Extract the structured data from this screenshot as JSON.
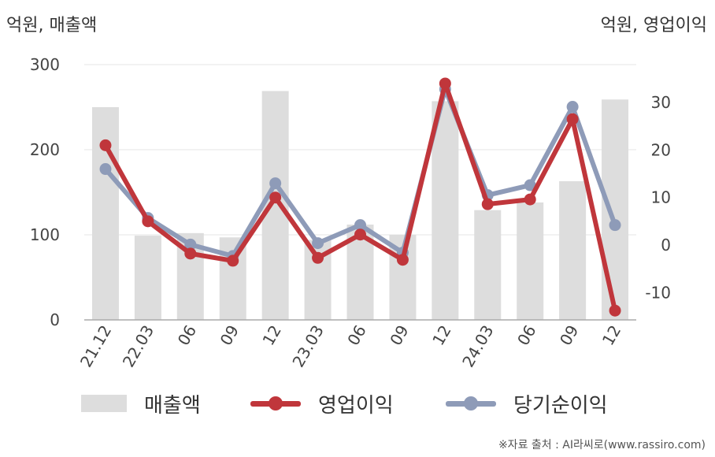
{
  "unit_left": "억원, 매출액",
  "unit_right": "억원, 영업이익",
  "source": "※자료 출처 : AI라씨로(www.rassiro.com)",
  "colors": {
    "bar": "#dddddd",
    "operating_profit": "#c0363b",
    "net_income": "#8e9bb8",
    "grid": "#e6e6e6",
    "axis": "#aaaaaa"
  },
  "legend": {
    "sales": "매출액",
    "operating_profit": "영업이익",
    "net_income": "당기순이익"
  },
  "chart_data": {
    "type": "bar",
    "categories": [
      "21.12",
      "22.03",
      "06",
      "09",
      "12",
      "23.03",
      "06",
      "09",
      "12",
      "24.03",
      "06",
      "09",
      "12"
    ],
    "left_axis": {
      "ylim": [
        0,
        300
      ],
      "ticks": [
        "0",
        "100",
        "200",
        "300"
      ]
    },
    "right_axis": {
      "ylim": [
        -16,
        38
      ],
      "ticks": [
        "-10",
        "0",
        "10",
        "20",
        "30"
      ]
    },
    "grid": true,
    "legend_position": "bottom",
    "series": [
      {
        "name": "매출액",
        "type": "bar",
        "axis": "left",
        "values": [
          250,
          99,
          102,
          97,
          269,
          94,
          112,
          100,
          257,
          129,
          138,
          163,
          259
        ]
      },
      {
        "name": "영업이익",
        "type": "line",
        "axis": "right",
        "values": [
          21,
          5,
          -1.8,
          -3.3,
          10,
          -2.7,
          2.2,
          -3.1,
          34,
          8.6,
          9.6,
          26.5,
          -13.8
        ]
      },
      {
        "name": "당기순이익",
        "type": "line",
        "axis": "right",
        "values": [
          16,
          5.7,
          0.1,
          -2.3,
          13,
          0.4,
          4.2,
          -1.6,
          32.8,
          10.5,
          12.6,
          29.1,
          4.2
        ]
      }
    ]
  }
}
